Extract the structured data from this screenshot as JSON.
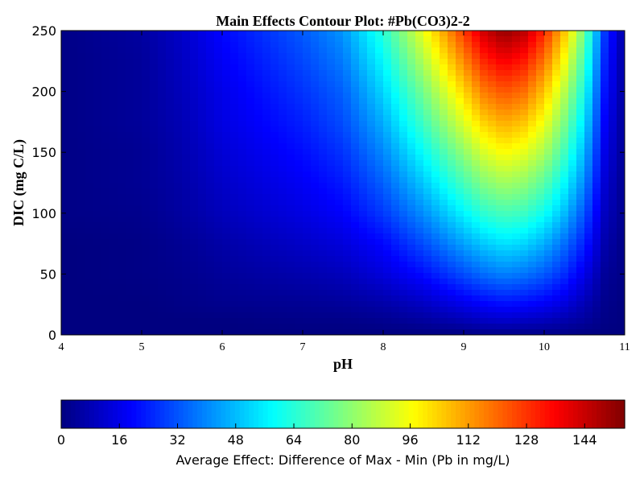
{
  "chart_data": {
    "type": "heatmap",
    "subtype": "filled-contour",
    "title": "Main Effects Contour Plot: #Pb(CO3)2-2",
    "xlabel": "pH",
    "ylabel": "DIC (mg C/L)",
    "xlim": [
      4,
      11
    ],
    "ylim": [
      0,
      250
    ],
    "x_ticks": [
      4,
      5,
      6,
      7,
      8,
      9,
      10,
      11
    ],
    "y_ticks": [
      0,
      50,
      100,
      150,
      200,
      250
    ],
    "grid": false,
    "colormap": "jet",
    "z_range": [
      0,
      155
    ],
    "peak": {
      "x": 9.5,
      "y": 250,
      "value": 152
    },
    "x": [
      4.0,
      5.0,
      5.5,
      6.0,
      7.0,
      7.5,
      8.0,
      8.5,
      9.0,
      9.25,
      9.5,
      9.75,
      10.0,
      10.25,
      10.5,
      10.75,
      11.0
    ],
    "y": [
      0,
      10,
      25,
      50,
      75,
      100,
      125,
      150,
      175,
      200,
      225,
      250
    ],
    "z": [
      [
        0,
        0,
        0,
        0,
        0,
        0,
        0,
        0,
        0,
        1,
        1,
        1,
        1,
        1,
        0,
        0,
        0
      ],
      [
        0,
        0,
        0,
        0,
        1,
        1,
        2,
        4,
        7,
        9,
        10,
        9,
        8,
        6,
        4,
        1,
        0
      ],
      [
        0,
        0,
        1,
        2,
        3,
        4,
        6,
        10,
        16,
        19,
        21,
        20,
        18,
        14,
        8,
        2,
        0
      ],
      [
        0,
        1,
        2,
        4,
        7,
        9,
        14,
        21,
        31,
        36,
        39,
        37,
        33,
        26,
        16,
        4,
        1
      ],
      [
        0,
        1,
        3,
        6,
        11,
        14,
        20,
        31,
        44,
        50,
        54,
        52,
        46,
        36,
        24,
        7,
        1
      ],
      [
        1,
        2,
        5,
        9,
        15,
        19,
        28,
        41,
        57,
        65,
        69,
        67,
        60,
        48,
        32,
        10,
        2
      ],
      [
        1,
        3,
        6,
        11,
        18,
        23,
        34,
        50,
        69,
        78,
        83,
        80,
        72,
        58,
        40,
        13,
        2
      ],
      [
        1,
        3,
        7,
        13,
        21,
        27,
        40,
        59,
        80,
        91,
        97,
        93,
        84,
        68,
        47,
        16,
        3
      ],
      [
        1,
        4,
        8,
        15,
        24,
        31,
        46,
        68,
        92,
        104,
        110,
        106,
        95,
        77,
        54,
        19,
        3
      ],
      [
        1,
        4,
        9,
        16,
        27,
        34,
        52,
        76,
        103,
        117,
        123,
        119,
        106,
        86,
        61,
        22,
        4
      ],
      [
        1,
        4,
        10,
        18,
        30,
        38,
        58,
        85,
        115,
        130,
        137,
        132,
        118,
        96,
        68,
        25,
        4
      ],
      [
        1,
        5,
        11,
        20,
        33,
        42,
        64,
        94,
        127,
        143,
        152,
        146,
        130,
        106,
        75,
        28,
        5
      ]
    ],
    "colorbar": {
      "label": "Average Effect: Difference of Max - Min (Pb in mg/L)",
      "ticks": [
        0,
        16,
        32,
        48,
        64,
        80,
        96,
        112,
        128,
        144
      ],
      "range": [
        0,
        155
      ],
      "orientation": "horizontal",
      "placement": "bottom"
    }
  }
}
